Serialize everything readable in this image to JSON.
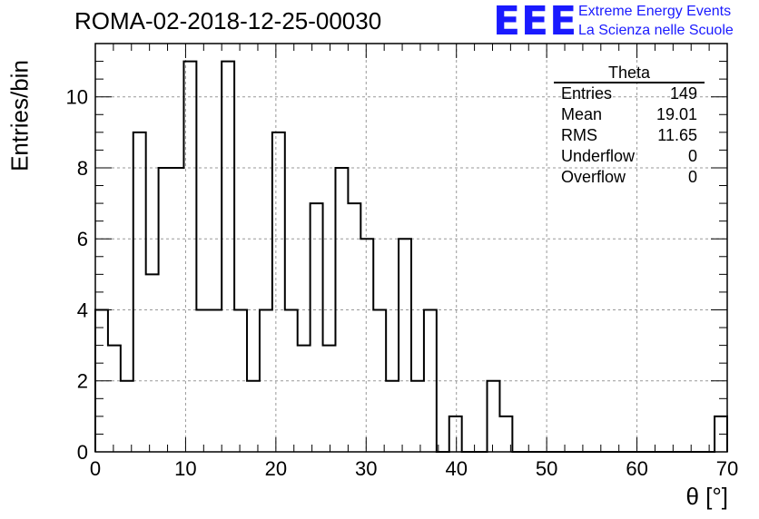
{
  "header": {
    "title": "ROMA-02-2018-12-25-00030",
    "logo_text": "EEE",
    "logo_line1": "Extreme Energy Events",
    "logo_line2": "La Scienza nelle Scuole"
  },
  "stats": {
    "title": "Theta",
    "rows": [
      {
        "label": "Entries",
        "value": "149"
      },
      {
        "label": "Mean",
        "value": "19.01"
      },
      {
        "label": "RMS",
        "value": "11.65"
      },
      {
        "label": "Underflow",
        "value": "0"
      },
      {
        "label": "Overflow",
        "value": "0"
      }
    ]
  },
  "colors": {
    "line": "#000000",
    "grid": "#999999",
    "logo": "#1a1aff"
  },
  "chart_data": {
    "type": "bar",
    "title": "ROMA-02-2018-12-25-00030",
    "xlabel": "θ [°]",
    "ylabel": "Entries/bin",
    "xlim": [
      0,
      70
    ],
    "ylim": [
      0,
      11.5
    ],
    "grid": true,
    "legend": "top-right",
    "bin_width": 1.4,
    "x_ticks": [
      0,
      10,
      20,
      30,
      40,
      50,
      60,
      70
    ],
    "y_ticks": [
      0,
      2,
      4,
      6,
      8,
      10
    ],
    "values": [
      4,
      3,
      2,
      9,
      5,
      8,
      8,
      11,
      4,
      4,
      11,
      4,
      2,
      4,
      9,
      4,
      3,
      7,
      3,
      8,
      7,
      6,
      4,
      2,
      6,
      2,
      4,
      0,
      1,
      0,
      0,
      2,
      1,
      0,
      0,
      0,
      0,
      0,
      0,
      0,
      0,
      0,
      0,
      0,
      0,
      0,
      0,
      0,
      0,
      1
    ]
  }
}
